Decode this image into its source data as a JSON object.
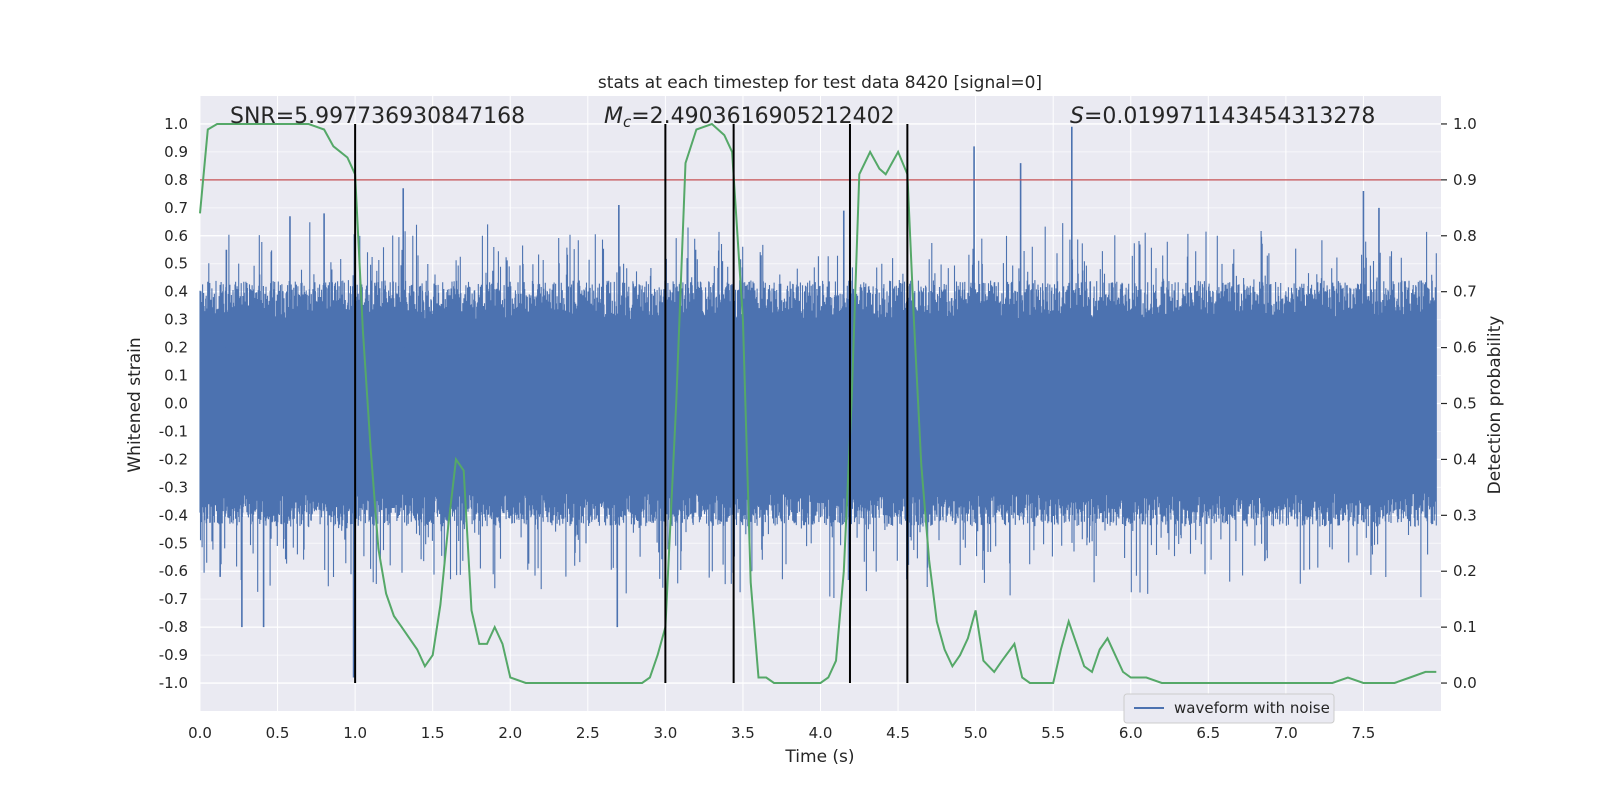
{
  "chart_data": {
    "type": "line",
    "title": "stats at each timestep for test data 8420 [signal=0]",
    "xlabel": "Time (s)",
    "ylabel": "Whitened strain",
    "y2label": "Detection probability",
    "xlim": [
      0.0,
      8.0
    ],
    "ylim": [
      -1.1,
      1.1
    ],
    "y2lim": [
      -0.05,
      1.05
    ],
    "x_ticks": [
      "0.0",
      "0.5",
      "1.0",
      "1.5",
      "2.0",
      "2.5",
      "3.0",
      "3.5",
      "4.0",
      "4.5",
      "5.0",
      "5.5",
      "6.0",
      "6.5",
      "7.0",
      "7.5"
    ],
    "y_ticks": [
      "1.0",
      "0.9",
      "0.8",
      "0.7",
      "0.6",
      "0.5",
      "0.4",
      "0.3",
      "0.2",
      "0.1",
      "0.0",
      "-0.1",
      "-0.2",
      "-0.3",
      "-0.4",
      "-0.5",
      "-0.6",
      "-0.7",
      "-0.8",
      "-0.9",
      "-1.0"
    ],
    "y2_ticks": [
      "1.0",
      "0.9",
      "0.8",
      "0.7",
      "0.6",
      "0.5",
      "0.4",
      "0.3",
      "0.2",
      "0.1",
      "0.0"
    ],
    "grid": true,
    "legend_position": "lower-right",
    "annotations": {
      "snr": "SNR=5.997736930847168",
      "mc": "=2.4903616905212402",
      "mc_symbol": "M",
      "mc_subscript": "c",
      "s": "=0.019971143454313278",
      "s_symbol": "S"
    },
    "threshold": 0.8,
    "vertical_lines_s": [
      1.0,
      3.0,
      3.44,
      4.19,
      4.56
    ],
    "series": [
      {
        "name": "waveform with noise",
        "style": "dense noise band, approx ±0.4 with spikes",
        "notable_spikes": [
          {
            "x": 0.13,
            "y": -0.62
          },
          {
            "x": 0.17,
            "y": 0.55
          },
          {
            "x": 0.27,
            "y": -0.8
          },
          {
            "x": 0.41,
            "y": -0.8
          },
          {
            "x": 0.58,
            "y": 0.67
          },
          {
            "x": 0.8,
            "y": 0.68
          },
          {
            "x": 0.99,
            "y": -0.98
          },
          {
            "x": 1.31,
            "y": 0.77
          },
          {
            "x": 2.69,
            "y": -0.8
          },
          {
            "x": 2.7,
            "y": 0.71
          },
          {
            "x": 4.15,
            "y": 0.69
          },
          {
            "x": 4.99,
            "y": 0.92
          },
          {
            "x": 5.29,
            "y": 0.86
          },
          {
            "x": 5.62,
            "y": 0.99
          },
          {
            "x": 7.5,
            "y": 0.76
          },
          {
            "x": 7.6,
            "y": 0.7
          }
        ]
      },
      {
        "name": "",
        "x": [
          0.0,
          0.05,
          0.11,
          0.2,
          0.4,
          0.6,
          0.7,
          0.8,
          0.86,
          0.95,
          1.0,
          1.05,
          1.1,
          1.15,
          1.2,
          1.25,
          1.3,
          1.4,
          1.45,
          1.5,
          1.55,
          1.6,
          1.65,
          1.7,
          1.75,
          1.8,
          1.85,
          1.9,
          1.95,
          2.0,
          2.1,
          2.3,
          2.5,
          2.7,
          2.8,
          2.85,
          2.9,
          2.95,
          3.0,
          3.07,
          3.13,
          3.2,
          3.3,
          3.38,
          3.43,
          3.5,
          3.55,
          3.6,
          3.65,
          3.7,
          3.8,
          3.9,
          3.95,
          4.0,
          4.05,
          4.1,
          4.15,
          4.2,
          4.25,
          4.32,
          4.38,
          4.42,
          4.5,
          4.56,
          4.6,
          4.65,
          4.7,
          4.75,
          4.8,
          4.85,
          4.9,
          4.95,
          5.0,
          5.05,
          5.12,
          5.17,
          5.25,
          5.3,
          5.35,
          5.4,
          5.5,
          5.55,
          5.6,
          5.65,
          5.7,
          5.75,
          5.8,
          5.85,
          5.9,
          5.95,
          6.0,
          6.1,
          6.2,
          6.3,
          6.5,
          6.7,
          6.9,
          7.1,
          7.3,
          7.4,
          7.5,
          7.6,
          7.7,
          7.8,
          7.9,
          7.97
        ],
        "values": [
          0.84,
          0.99,
          1.0,
          1.0,
          1.0,
          1.0,
          1.0,
          0.99,
          0.96,
          0.94,
          0.91,
          0.63,
          0.42,
          0.24,
          0.16,
          0.12,
          0.1,
          0.06,
          0.03,
          0.05,
          0.14,
          0.28,
          0.4,
          0.38,
          0.13,
          0.07,
          0.07,
          0.1,
          0.07,
          0.01,
          0.0,
          0.0,
          0.0,
          0.0,
          0.0,
          0.0,
          0.01,
          0.05,
          0.1,
          0.5,
          0.93,
          0.99,
          1.0,
          0.98,
          0.95,
          0.65,
          0.18,
          0.01,
          0.01,
          0.0,
          0.0,
          0.0,
          0.0,
          0.0,
          0.01,
          0.04,
          0.2,
          0.5,
          0.91,
          0.95,
          0.92,
          0.91,
          0.95,
          0.91,
          0.66,
          0.39,
          0.22,
          0.11,
          0.06,
          0.03,
          0.05,
          0.08,
          0.13,
          0.04,
          0.02,
          0.04,
          0.07,
          0.01,
          0.0,
          0.0,
          0.0,
          0.06,
          0.11,
          0.07,
          0.03,
          0.02,
          0.06,
          0.08,
          0.05,
          0.02,
          0.01,
          0.01,
          0.0,
          0.0,
          0.0,
          0.0,
          0.0,
          0.0,
          0.0,
          0.01,
          0.0,
          0.0,
          0.0,
          0.01,
          0.02,
          0.02
        ]
      }
    ]
  },
  "colors": {
    "figure_bg": "#ffffff",
    "plot_bg": "#eaeaf2",
    "grid": "#ffffff",
    "waveform": "#4c72b0",
    "probability": "#55a868",
    "threshold": "#c44e52",
    "vlines": "#000000",
    "text": "#262626"
  }
}
